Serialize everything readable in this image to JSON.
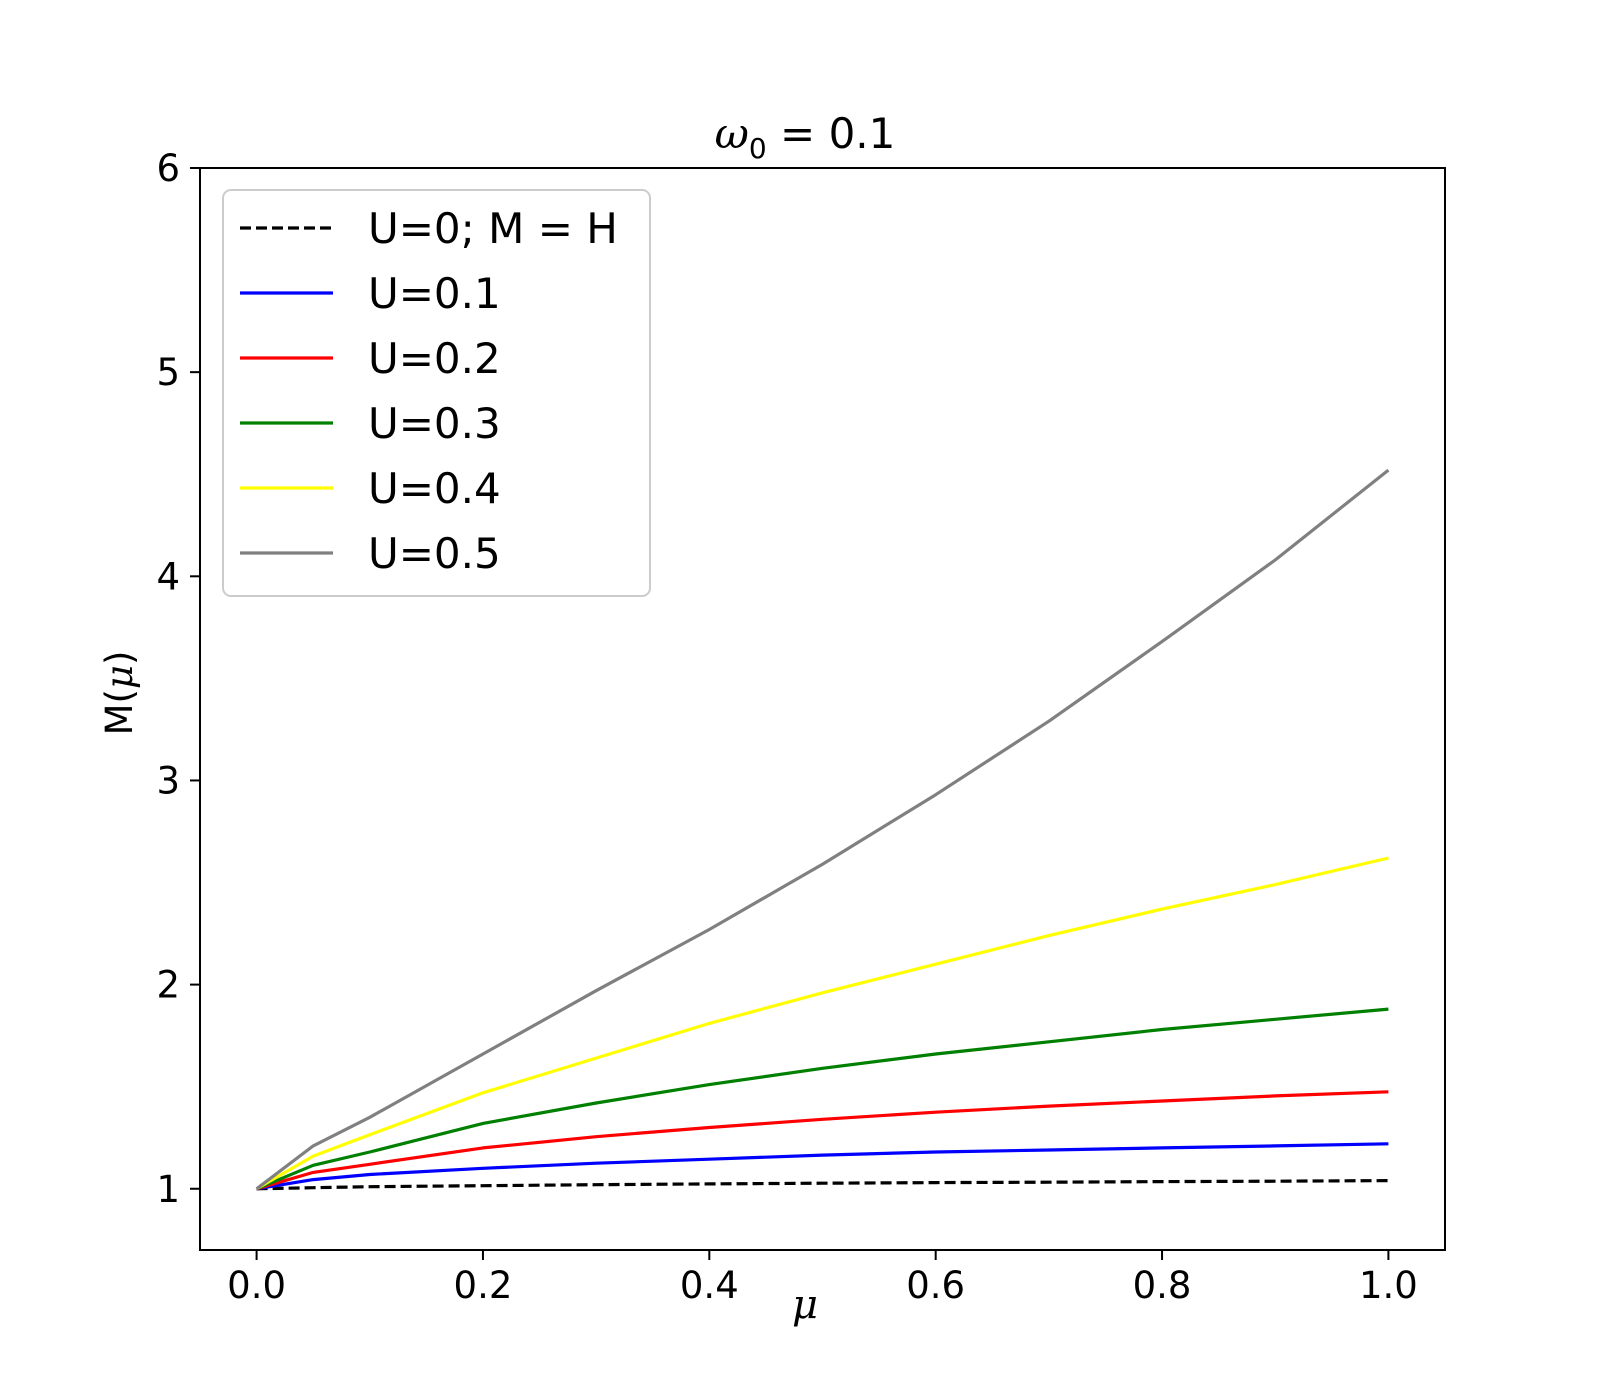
{
  "chart_data": {
    "type": "line",
    "title": {
      "symbol": "ω",
      "subscript": "0",
      "rest": " = 0.1"
    },
    "xlabel": "μ",
    "ylabel": {
      "prefix": "M(",
      "symbol": "μ",
      "suffix": ")"
    },
    "xlim": [
      -0.05,
      1.05
    ],
    "ylim": [
      0.7,
      6.0
    ],
    "xticks": [
      0.0,
      0.2,
      0.4,
      0.6,
      0.8,
      1.0
    ],
    "xtick_labels": [
      "0.0",
      "0.2",
      "0.4",
      "0.6",
      "0.8",
      "1.0"
    ],
    "yticks": [
      1,
      2,
      3,
      4,
      5,
      6
    ],
    "ytick_labels": [
      "1",
      "2",
      "3",
      "4",
      "5",
      "6"
    ],
    "grid": false,
    "legend_position": "top-left",
    "x": [
      0.0,
      0.05,
      0.1,
      0.2,
      0.3,
      0.4,
      0.5,
      0.6,
      0.7,
      0.8,
      0.9,
      1.0
    ],
    "series": [
      {
        "name": "U=0; M = H",
        "color": "#000000",
        "dash": true,
        "values": [
          1.0,
          1.005,
          1.01,
          1.015,
          1.02,
          1.024,
          1.027,
          1.03,
          1.032,
          1.035,
          1.037,
          1.04
        ]
      },
      {
        "name": "U=0.1",
        "color": "#0000ff",
        "dash": false,
        "values": [
          1.0,
          1.045,
          1.07,
          1.1,
          1.125,
          1.145,
          1.165,
          1.18,
          1.19,
          1.2,
          1.21,
          1.22
        ]
      },
      {
        "name": "U=0.2",
        "color": "#ff0000",
        "dash": false,
        "values": [
          1.0,
          1.08,
          1.12,
          1.2,
          1.255,
          1.3,
          1.34,
          1.375,
          1.405,
          1.43,
          1.455,
          1.475
        ]
      },
      {
        "name": "U=0.3",
        "color": "#008000",
        "dash": false,
        "values": [
          1.0,
          1.115,
          1.18,
          1.32,
          1.42,
          1.51,
          1.59,
          1.66,
          1.72,
          1.78,
          1.83,
          1.88
        ]
      },
      {
        "name": "U=0.4",
        "color": "#ffff00",
        "dash": false,
        "values": [
          1.0,
          1.16,
          1.265,
          1.47,
          1.64,
          1.81,
          1.96,
          2.1,
          2.24,
          2.37,
          2.49,
          2.62
        ]
      },
      {
        "name": "U=0.5",
        "color": "#808080",
        "dash": false,
        "values": [
          1.0,
          1.21,
          1.35,
          1.66,
          1.97,
          2.27,
          2.59,
          2.93,
          3.29,
          3.68,
          4.08,
          4.52
        ]
      }
    ]
  }
}
